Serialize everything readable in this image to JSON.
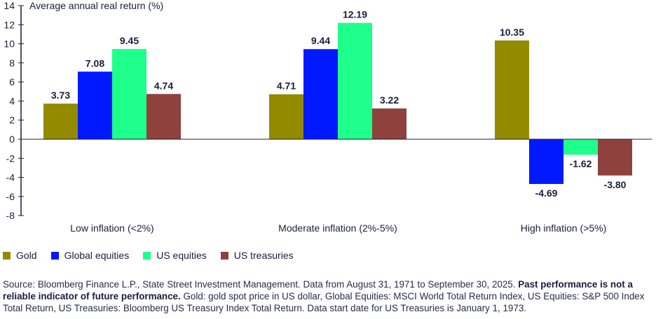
{
  "chart_data": {
    "type": "bar",
    "ylabel": "Average annual real return (%)",
    "ylim": [
      -8,
      14
    ],
    "yticks": [
      -8,
      -6,
      -4,
      -2,
      0,
      2,
      4,
      6,
      8,
      10,
      12,
      14
    ],
    "grid": false,
    "legend_position": "bottom-left",
    "categories": [
      "Low inflation (<2%)",
      "Moderate inflation (2%-5%)",
      "High inflation (>5%)"
    ],
    "series": [
      {
        "name": "Gold",
        "color": "#948a00",
        "values": [
          3.73,
          4.71,
          10.35
        ],
        "labels": [
          "3.73",
          "4.71",
          "10.35"
        ]
      },
      {
        "name": "Global equities",
        "color": "#0019ff",
        "values": [
          7.08,
          9.44,
          -4.69
        ],
        "labels": [
          "7.08",
          "9.44",
          "-4.69"
        ]
      },
      {
        "name": "US equities",
        "color": "#1eff8c",
        "values": [
          9.45,
          12.19,
          -1.62
        ],
        "labels": [
          "9.45",
          "12.19",
          "-1.62"
        ]
      },
      {
        "name": "US treasuries",
        "color": "#8f413d",
        "values": [
          4.74,
          3.22,
          -3.8
        ],
        "labels": [
          "4.74",
          "3.22",
          "-3.80"
        ]
      }
    ]
  },
  "footnote": {
    "part1": "Source: Bloomberg Finance L.P., State Street Investment Management. Data from August 31, 1971 to September 30, 2025. ",
    "bold": "Past performance is not a reliable indicator of future performance.",
    "part2": " Gold: gold spot price in US dollar, Global Equities: MSCI World Total Return Index, US Equities: S&P 500 Index Total Return, US Treasuries: Bloomberg US Treasury Index Total Return. Data start date for US Treasuries is January 1, 1973."
  }
}
